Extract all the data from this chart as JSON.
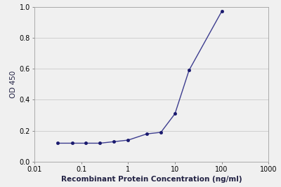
{
  "x": [
    0.031,
    0.063,
    0.125,
    0.25,
    0.5,
    1.0,
    2.5,
    5.0,
    10.0,
    20.0,
    100.0
  ],
  "y": [
    0.12,
    0.12,
    0.12,
    0.12,
    0.13,
    0.14,
    0.18,
    0.19,
    0.31,
    0.59,
    0.97
  ],
  "line_color": "#3d3d8f",
  "marker_color": "#1a1a6e",
  "marker_size": 3,
  "line_width": 1.0,
  "xlabel": "Recombinant Protein Concentration (ng/ml)",
  "ylabel": "OD 450",
  "xlim": [
    0.01,
    1000
  ],
  "ylim": [
    0,
    1.0
  ],
  "yticks": [
    0,
    0.2,
    0.4,
    0.6,
    0.8,
    1.0
  ],
  "xticks": [
    0.01,
    0.1,
    1,
    10,
    100,
    1000
  ],
  "xtick_labels": [
    "0.01",
    "0.1",
    "1",
    "10",
    "100",
    "1000"
  ],
  "grid_color": "#d0d0d0",
  "background_color": "#f0f0f0",
  "plot_bg_color": "#f0f0f0",
  "xlabel_fontsize": 7.5,
  "ylabel_fontsize": 7.5,
  "tick_fontsize": 7
}
